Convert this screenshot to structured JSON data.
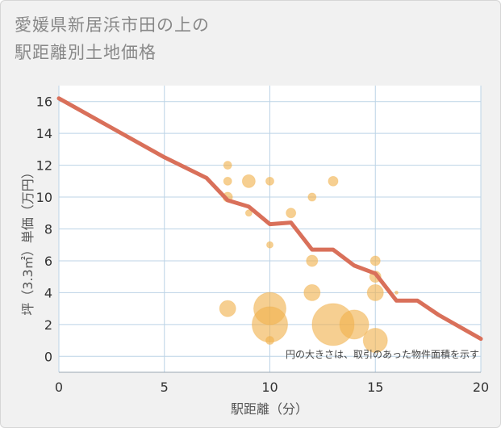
{
  "title_lines": [
    "愛媛県新居浜市田の上の",
    "駅距離別土地価格"
  ],
  "chart_data": {
    "type": "scatter",
    "xlabel": "駅距離（分）",
    "ylabel": "坪（3.3㎡）単価（万円）",
    "xlim": [
      0,
      20
    ],
    "ylim": [
      -1,
      17
    ],
    "xticks": [
      0,
      5,
      10,
      15,
      20
    ],
    "yticks": [
      0,
      2,
      4,
      6,
      8,
      10,
      12,
      14,
      16
    ],
    "grid": true,
    "note": "円の大きさは、取引のあった物件面積を示す",
    "colors": {
      "bubble": "#f0b24e",
      "line": "#d9705a",
      "grid": "#bcd3e6"
    },
    "points": [
      {
        "x": 8,
        "y": 12,
        "size": 1
      },
      {
        "x": 8,
        "y": 11,
        "size": 1
      },
      {
        "x": 8,
        "y": 10,
        "size": 1.2
      },
      {
        "x": 8,
        "y": 3,
        "size": 2
      },
      {
        "x": 9,
        "y": 11,
        "size": 1.6
      },
      {
        "x": 9,
        "y": 9,
        "size": 0.8
      },
      {
        "x": 10,
        "y": 11,
        "size": 1
      },
      {
        "x": 10,
        "y": 7,
        "size": 0.8
      },
      {
        "x": 10,
        "y": 3,
        "size": 4
      },
      {
        "x": 10,
        "y": 2,
        "size": 4.4
      },
      {
        "x": 10,
        "y": 1,
        "size": 1
      },
      {
        "x": 11,
        "y": 9,
        "size": 1.2
      },
      {
        "x": 12,
        "y": 10,
        "size": 1
      },
      {
        "x": 12,
        "y": 6,
        "size": 1.4
      },
      {
        "x": 12,
        "y": 4,
        "size": 2
      },
      {
        "x": 13,
        "y": 11,
        "size": 1.2
      },
      {
        "x": 13,
        "y": 2,
        "size": 5.2
      },
      {
        "x": 14,
        "y": 2,
        "size": 3.6
      },
      {
        "x": 15,
        "y": 6,
        "size": 1.2
      },
      {
        "x": 15,
        "y": 5,
        "size": 1.4
      },
      {
        "x": 15,
        "y": 4,
        "size": 2
      },
      {
        "x": 15,
        "y": 1,
        "size": 3
      },
      {
        "x": 16,
        "y": 4,
        "size": 0.4
      }
    ],
    "trend_line": [
      {
        "x": 0,
        "y": 16.2
      },
      {
        "x": 5,
        "y": 12.5
      },
      {
        "x": 7,
        "y": 11.2
      },
      {
        "x": 8,
        "y": 9.8
      },
      {
        "x": 9,
        "y": 9.4
      },
      {
        "x": 10,
        "y": 8.3
      },
      {
        "x": 11,
        "y": 8.4
      },
      {
        "x": 12,
        "y": 6.7
      },
      {
        "x": 13,
        "y": 6.7
      },
      {
        "x": 14,
        "y": 5.7
      },
      {
        "x": 15,
        "y": 5.2
      },
      {
        "x": 16,
        "y": 3.5
      },
      {
        "x": 17,
        "y": 3.5
      },
      {
        "x": 18,
        "y": 2.6
      },
      {
        "x": 20,
        "y": 1.1
      }
    ]
  }
}
